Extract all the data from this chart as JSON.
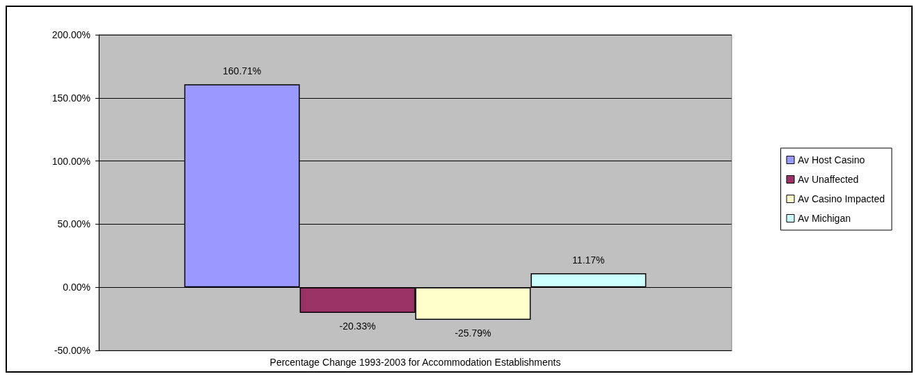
{
  "chart_data": {
    "type": "bar",
    "categories": [
      "Percentage Change 1993-2003 for Accommodation Establishments"
    ],
    "series": [
      {
        "name": "Av Host Casino",
        "color": "#9999ff",
        "values": [
          160.71
        ],
        "value_labels": [
          "160.71%"
        ]
      },
      {
        "name": "Av Unaffected",
        "color": "#993366",
        "values": [
          -20.33
        ],
        "value_labels": [
          "-20.33%"
        ]
      },
      {
        "name": "Av Casino Impacted",
        "color": "#ffffcc",
        "values": [
          -25.79
        ],
        "value_labels": [
          "-25.79%"
        ]
      },
      {
        "name": "Av Michigan",
        "color": "#ccffff",
        "values": [
          11.17
        ],
        "value_labels": [
          "11.17%"
        ]
      }
    ],
    "ylim": [
      -50,
      200
    ],
    "yticks": [
      {
        "value": -50,
        "label": "-50.00%"
      },
      {
        "value": 0,
        "label": "0.00%"
      },
      {
        "value": 50,
        "label": "50.00%"
      },
      {
        "value": 100,
        "label": "100.00%"
      },
      {
        "value": 150,
        "label": "150.00%"
      },
      {
        "value": 200,
        "label": "200.00%"
      }
    ],
    "grid": "y",
    "legend": "right"
  }
}
